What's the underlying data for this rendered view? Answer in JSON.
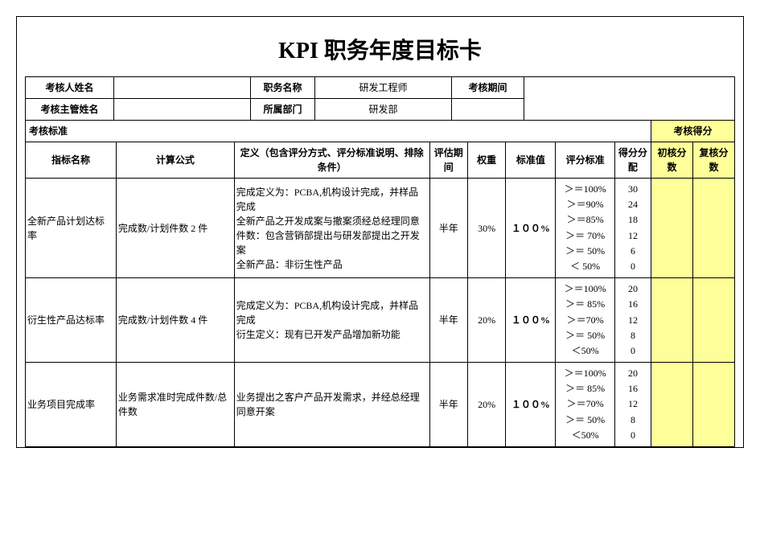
{
  "title": "KPI 职务年度目标卡",
  "header": {
    "labels": {
      "assessee_name": "考核人姓名",
      "position": "职务名称",
      "period": "考核期间",
      "supervisor_name": "考核主管姓名",
      "department": "所属部门"
    },
    "values": {
      "assessee_name": "",
      "position": "研发工程师",
      "period": "",
      "supervisor_name": "",
      "department": "研发部"
    }
  },
  "section_labels": {
    "criteria": "考核标准",
    "score": "考核得分"
  },
  "columns": {
    "indicator": "指标名称",
    "formula": "计算公式",
    "definition": "定义（包含评分方式、评分标准说明、排除条件）",
    "eval_period": "评估期间",
    "weight": "权重",
    "standard_value": "标准值",
    "scoring_std": "评分标准",
    "score_alloc": "得分分配",
    "first_score": "初核分数",
    "review_score": "复核分数"
  },
  "rows": [
    {
      "indicator": "全新产品计划达标率",
      "formula": "完成数/计划件数 2 件",
      "definition": "完成定义为：PCBA,机构设计完成，并样品完成\n全新产品之开发成案与撤案须经总经理同意\n件数：包含营销部提出与研发部提出之开发案\n全新产品：非衍生性产品",
      "eval_period": "半年",
      "weight": "30%",
      "standard_value": "１００%",
      "scoring": [
        {
          "cond": "＞＝100%",
          "pts": "30"
        },
        {
          "cond": "＞＝90%",
          "pts": "24"
        },
        {
          "cond": "＞＝85%",
          "pts": "18"
        },
        {
          "cond": "＞＝ 70%",
          "pts": "12"
        },
        {
          "cond": "＞＝ 50%",
          "pts": "6"
        },
        {
          "cond": "＜ 50%",
          "pts": "0"
        }
      ]
    },
    {
      "indicator": "衍生性产品达标率",
      "formula": "完成数/计划件数 4 件",
      "definition": "完成定义为：PCBA,机构设计完成，并样品完成\n衍生定义：现有已开发产品增加新功能",
      "eval_period": "半年",
      "weight": "20%",
      "standard_value": "１００%",
      "scoring": [
        {
          "cond": "＞＝100%",
          "pts": "20"
        },
        {
          "cond": "＞＝ 85%",
          "pts": "16"
        },
        {
          "cond": "＞＝70%",
          "pts": "12"
        },
        {
          "cond": "＞＝ 50%",
          "pts": "8"
        },
        {
          "cond": "＜50%",
          "pts": "0"
        }
      ]
    },
    {
      "indicator": "业务项目完成率",
      "formula": "业务需求准时完成件数/总件数",
      "definition": "业务提出之客户产品开发需求，并经总经理同意开案",
      "eval_period": "半年",
      "weight": "20%",
      "standard_value": "１００%",
      "scoring": [
        {
          "cond": "＞＝100%",
          "pts": "20"
        },
        {
          "cond": "＞＝ 85%",
          "pts": "16"
        },
        {
          "cond": "＞＝70%",
          "pts": "12"
        },
        {
          "cond": "＞＝ 50%",
          "pts": "8"
        },
        {
          "cond": "＜50%",
          "pts": "0"
        }
      ]
    }
  ],
  "colors": {
    "score_bg": "#ffff99",
    "border": "#000000",
    "background": "#ffffff"
  }
}
